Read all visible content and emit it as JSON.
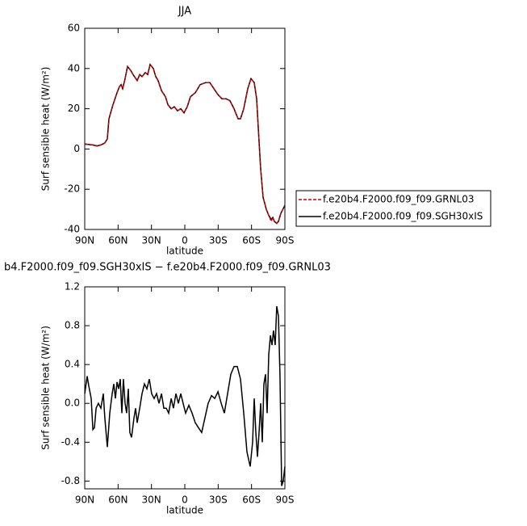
{
  "chart_data": [
    {
      "type": "line",
      "title": "JJA",
      "xlabel": "latitude",
      "ylabel": "Surf sensible heat (W/m²)",
      "x": [
        90,
        82.7,
        79.1,
        75.5,
        71.9,
        69.7,
        68.2,
        64.6,
        61,
        58.8,
        57.3,
        55.9,
        53.7,
        51.5,
        48.6,
        46.5,
        42.8,
        40.6,
        38.5,
        35.6,
        33.4,
        31.2,
        28.3,
        26.1,
        24,
        21,
        17.4,
        15.2,
        12.3,
        9.4,
        6.5,
        3.6,
        0.7,
        -2.2,
        -5.1,
        -9.4,
        -13.8,
        -18.9,
        -22.5,
        -26.1,
        -29.8,
        -33.4,
        -37,
        -40.6,
        -44.3,
        -47.9,
        -50.1,
        -53,
        -56.6,
        -59.5,
        -62.4,
        -64.6,
        -66.1,
        -68.2,
        -70.4,
        -73.3,
        -75.5,
        -77.7,
        -79.1,
        -80.6,
        -82.7,
        -84.2,
        -86.4,
        -90
      ],
      "series": [
        {
          "name": "f.e20b4.F2000.f09_f09.SGH30xIS",
          "color": "#000000",
          "dash": false,
          "values": [
            2.5,
            2,
            1.5,
            2,
            3,
            5,
            15,
            22,
            28,
            31,
            32,
            30,
            35,
            41,
            39,
            37,
            34,
            37,
            36,
            38,
            37,
            42,
            40,
            36,
            34,
            29,
            26,
            22,
            20,
            21,
            19,
            20,
            18,
            21,
            26,
            28,
            32,
            33,
            33,
            30,
            27,
            25,
            25,
            24,
            20,
            15,
            15,
            20,
            30,
            35,
            33,
            25,
            10,
            -10,
            -24,
            -30,
            -33,
            -35,
            -34,
            -36,
            -37,
            -36,
            -32,
            -28
          ]
        },
        {
          "name": "f.e20b4.F2000.f09_f09.GRNL03",
          "color": "#cc0000",
          "dash": true,
          "values": [
            2.4,
            2,
            1.6,
            2,
            3,
            5,
            15,
            22,
            28,
            31,
            32,
            30,
            35,
            41,
            39,
            37,
            34,
            37,
            36,
            38,
            37,
            42,
            40,
            36,
            34,
            29,
            26,
            22,
            20,
            21,
            19,
            20,
            18,
            21,
            26,
            28,
            32,
            33,
            33,
            30,
            27,
            25,
            25,
            24,
            20,
            15,
            15,
            20,
            30,
            35,
            33,
            25,
            10,
            -10,
            -24,
            -30,
            -33,
            -36,
            -34,
            -36,
            -37,
            -36,
            -32,
            -28
          ]
        }
      ],
      "xlim": [
        90,
        -90
      ],
      "xticks": [
        {
          "value": 90,
          "label": "90N"
        },
        {
          "value": 60,
          "label": "60N"
        },
        {
          "value": 30,
          "label": "30N"
        },
        0,
        {
          "value": -30,
          "label": "30S"
        },
        {
          "value": -60,
          "label": "60S"
        },
        {
          "value": -90,
          "label": "90S"
        }
      ],
      "ylim": [
        -40,
        60
      ],
      "yticks": [
        -40,
        -20,
        0,
        20,
        40,
        60
      ]
    },
    {
      "type": "line",
      "title": "b4.F2000.f09_f09.SGH30xIS − f.e20b4.F2000.f09_f09.GRNL03",
      "xlabel": "latitude",
      "ylabel": "Surf sensible heat (W/m²)",
      "x": [
        90,
        87.8,
        86.4,
        84.2,
        82.7,
        81.3,
        79.8,
        77.7,
        75.5,
        73.3,
        71.9,
        69.7,
        67.5,
        65.3,
        63.9,
        62.4,
        61,
        59.5,
        58.1,
        56.6,
        55.2,
        53.7,
        52.3,
        50.8,
        49.4,
        47.9,
        45.7,
        44.3,
        42.8,
        40.6,
        38.5,
        36.3,
        34.1,
        31.9,
        29.8,
        27.6,
        25.4,
        23.2,
        21,
        18.9,
        16.7,
        14.5,
        12.3,
        10.2,
        8,
        5.8,
        3.6,
        1.5,
        -0.7,
        -3.6,
        -6.5,
        -9.4,
        -12.3,
        -15.2,
        -18.1,
        -21,
        -24,
        -26.9,
        -29.8,
        -32.7,
        -35.6,
        -38.5,
        -41.4,
        -44.3,
        -47.2,
        -50.1,
        -53,
        -55.9,
        -58.8,
        -61,
        -62.4,
        -63.9,
        -65.3,
        -66.8,
        -68.2,
        -69.7,
        -71.1,
        -72.6,
        -74,
        -75.5,
        -77,
        -78.4,
        -79.8,
        -81.3,
        -82.7,
        -84.2,
        -85.6,
        -87.1,
        -88.5,
        -90
      ],
      "series": [
        {
          "color": "#000000",
          "dash": false,
          "values": [
            0.1,
            0.28,
            0.18,
            0.05,
            -0.27,
            -0.25,
            -0.05,
            0.0,
            -0.05,
            0.1,
            -0.15,
            -0.45,
            -0.1,
            0.1,
            0.2,
            0.05,
            0.22,
            0.15,
            0.25,
            -0.1,
            0.25,
            0.0,
            -0.1,
            0.15,
            -0.3,
            -0.35,
            -0.15,
            -0.05,
            -0.2,
            -0.05,
            0.1,
            0.2,
            0.15,
            0.25,
            0.1,
            0.05,
            0.1,
            0.0,
            0.1,
            -0.05,
            -0.05,
            -0.1,
            0.05,
            -0.05,
            0.1,
            0.0,
            0.1,
            0.0,
            -0.1,
            -0.02,
            -0.1,
            -0.2,
            -0.25,
            -0.3,
            -0.15,
            0.0,
            0.08,
            0.05,
            0.12,
            0.0,
            -0.1,
            0.1,
            0.3,
            0.38,
            0.38,
            0.25,
            -0.1,
            -0.5,
            -0.65,
            -0.4,
            0.05,
            -0.3,
            -0.55,
            -0.3,
            0.0,
            -0.4,
            0.2,
            0.3,
            -0.1,
            0.5,
            0.7,
            0.6,
            0.75,
            0.6,
            1.0,
            0.9,
            0.3,
            -0.85,
            -0.8,
            -0.65
          ]
        }
      ],
      "xlim": [
        90,
        -90
      ],
      "xticks": [
        {
          "value": 90,
          "label": "90N"
        },
        {
          "value": 60,
          "label": "60N"
        },
        {
          "value": 30,
          "label": "30N"
        },
        0,
        {
          "value": -30,
          "label": "30S"
        },
        {
          "value": -60,
          "label": "60S"
        },
        {
          "value": -90,
          "label": "90S"
        }
      ],
      "ylim": [
        -0.88,
        1.2
      ],
      "yticks": [
        -0.8,
        -0.4,
        {
          "value": 0,
          "label": "0.0"
        },
        0.4,
        0.8,
        1.2
      ]
    }
  ]
}
